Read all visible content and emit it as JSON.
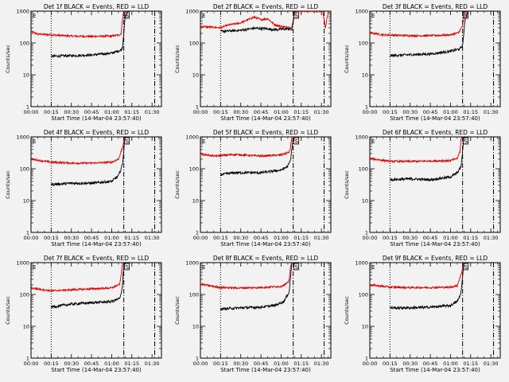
{
  "chart_data": {
    "type": "line",
    "grid": false,
    "common": {
      "xlabel": "Start Time (14-Mar-04 23:57:40)",
      "ylabel": "Counts/sec",
      "xticks": [
        "00:00",
        "00:15",
        "00:30",
        "00:45",
        "01:00",
        "01:15",
        "01:30"
      ],
      "yticks": [
        "1",
        "10",
        "100",
        "1000"
      ],
      "yscale": "log",
      "ylim": [
        1,
        1000
      ],
      "xlim_minutes": [
        0,
        97
      ],
      "vline_dotted_minutes": 15,
      "vline_dashdot_minutes": [
        69,
        92
      ],
      "marker_labels": [
        "E",
        "S"
      ]
    },
    "panels": [
      {
        "title": "Det 1f BLACK = Events, RED = LLD",
        "black": [
          [
            15,
            38
          ],
          [
            30,
            40
          ],
          [
            45,
            42
          ],
          [
            60,
            48
          ],
          [
            67,
            60
          ],
          [
            68,
            72
          ],
          [
            70,
            650
          ],
          [
            72,
            1000
          ]
        ],
        "red": [
          [
            0,
            230
          ],
          [
            5,
            190
          ],
          [
            15,
            180
          ],
          [
            30,
            165
          ],
          [
            45,
            160
          ],
          [
            60,
            165
          ],
          [
            66,
            180
          ],
          [
            67,
            200
          ],
          [
            68,
            550
          ],
          [
            69,
            1000
          ],
          [
            72,
            1000
          ]
        ]
      },
      {
        "title": "Det 2f BLACK = Events, RED = LLD",
        "black": [
          [
            15,
            230
          ],
          [
            30,
            250
          ],
          [
            40,
            290
          ],
          [
            50,
            280
          ],
          [
            55,
            260
          ],
          [
            65,
            280
          ],
          [
            68,
            260
          ],
          [
            70,
            900
          ]
        ],
        "red": [
          [
            0,
            330
          ],
          [
            10,
            310
          ],
          [
            15,
            300
          ],
          [
            20,
            360
          ],
          [
            30,
            430
          ],
          [
            40,
            650
          ],
          [
            45,
            540
          ],
          [
            50,
            580
          ],
          [
            55,
            380
          ],
          [
            60,
            330
          ],
          [
            68,
            300
          ],
          [
            70,
            900
          ],
          [
            72,
            1000
          ],
          [
            88,
            1000
          ],
          [
            91,
            1000
          ],
          [
            93,
            300
          ],
          [
            95,
            1000
          ]
        ]
      },
      {
        "title": "Det 3f BLACK = Events, RED = LLD",
        "black": [
          [
            15,
            40
          ],
          [
            30,
            43
          ],
          [
            45,
            45
          ],
          [
            60,
            55
          ],
          [
            67,
            65
          ],
          [
            69,
            85
          ],
          [
            71,
            600
          ],
          [
            73,
            1000
          ]
        ],
        "red": [
          [
            0,
            210
          ],
          [
            10,
            180
          ],
          [
            30,
            170
          ],
          [
            45,
            170
          ],
          [
            60,
            180
          ],
          [
            66,
            210
          ],
          [
            69,
            350
          ],
          [
            71,
            1000
          ]
        ]
      },
      {
        "title": "Det 4f BLACK = Events, RED = LLD",
        "black": [
          [
            15,
            32
          ],
          [
            30,
            35
          ],
          [
            45,
            35
          ],
          [
            60,
            40
          ],
          [
            65,
            60
          ],
          [
            67,
            100
          ],
          [
            68,
            140
          ],
          [
            70,
            1000
          ]
        ],
        "red": [
          [
            0,
            200
          ],
          [
            15,
            160
          ],
          [
            30,
            150
          ],
          [
            45,
            150
          ],
          [
            60,
            160
          ],
          [
            65,
            200
          ],
          [
            68,
            450
          ],
          [
            70,
            1000
          ]
        ]
      },
      {
        "title": "Det 5f BLACK = Events, RED = LLD",
        "black": [
          [
            15,
            65
          ],
          [
            25,
            75
          ],
          [
            45,
            75
          ],
          [
            60,
            90
          ],
          [
            65,
            120
          ],
          [
            67,
            180
          ],
          [
            69,
            1000
          ]
        ],
        "red": [
          [
            0,
            290
          ],
          [
            10,
            250
          ],
          [
            25,
            280
          ],
          [
            45,
            250
          ],
          [
            60,
            270
          ],
          [
            66,
            330
          ],
          [
            67,
            450
          ],
          [
            68,
            1000
          ],
          [
            72,
            1000
          ]
        ]
      },
      {
        "title": "Det 6f BLACK = Events, RED = LLD",
        "black": [
          [
            15,
            45
          ],
          [
            30,
            48
          ],
          [
            45,
            45
          ],
          [
            60,
            55
          ],
          [
            65,
            75
          ],
          [
            67,
            100
          ],
          [
            68,
            130
          ],
          [
            70,
            1000
          ]
        ],
        "red": [
          [
            0,
            210
          ],
          [
            15,
            170
          ],
          [
            30,
            170
          ],
          [
            45,
            175
          ],
          [
            60,
            180
          ],
          [
            65,
            210
          ],
          [
            67,
            350
          ],
          [
            68,
            900
          ],
          [
            70,
            1000
          ]
        ]
      },
      {
        "title": "Det 7f BLACK = Events, RED = LLD",
        "black": [
          [
            15,
            40
          ],
          [
            30,
            50
          ],
          [
            45,
            55
          ],
          [
            60,
            60
          ],
          [
            66,
            75
          ],
          [
            67,
            100
          ],
          [
            68,
            200
          ],
          [
            69,
            1000
          ]
        ],
        "red": [
          [
            0,
            160
          ],
          [
            15,
            130
          ],
          [
            30,
            140
          ],
          [
            45,
            150
          ],
          [
            60,
            160
          ],
          [
            66,
            210
          ],
          [
            67,
            400
          ],
          [
            68,
            1000
          ]
        ]
      },
      {
        "title": "Det 8f BLACK = Events, RED = LLD",
        "black": [
          [
            15,
            35
          ],
          [
            30,
            38
          ],
          [
            45,
            40
          ],
          [
            55,
            45
          ],
          [
            62,
            60
          ],
          [
            65,
            100
          ],
          [
            66,
            120
          ],
          [
            68,
            1000
          ]
        ],
        "red": [
          [
            0,
            210
          ],
          [
            15,
            165
          ],
          [
            30,
            160
          ],
          [
            45,
            165
          ],
          [
            60,
            180
          ],
          [
            65,
            230
          ],
          [
            66,
            300
          ],
          [
            67,
            700
          ],
          [
            68,
            1000
          ]
        ]
      },
      {
        "title": "Det 9f BLACK = Events, RED = LLD",
        "black": [
          [
            15,
            38
          ],
          [
            30,
            38
          ],
          [
            45,
            40
          ],
          [
            60,
            45
          ],
          [
            65,
            60
          ],
          [
            67,
            90
          ],
          [
            68,
            130
          ],
          [
            70,
            1000
          ]
        ],
        "red": [
          [
            0,
            200
          ],
          [
            15,
            170
          ],
          [
            30,
            165
          ],
          [
            45,
            165
          ],
          [
            60,
            170
          ],
          [
            65,
            190
          ],
          [
            68,
            450
          ],
          [
            70,
            1000
          ]
        ]
      }
    ]
  },
  "colors": {
    "background": "#f2f2f2",
    "axes": "#000000",
    "events": "#000000",
    "lld": "#e00000"
  }
}
